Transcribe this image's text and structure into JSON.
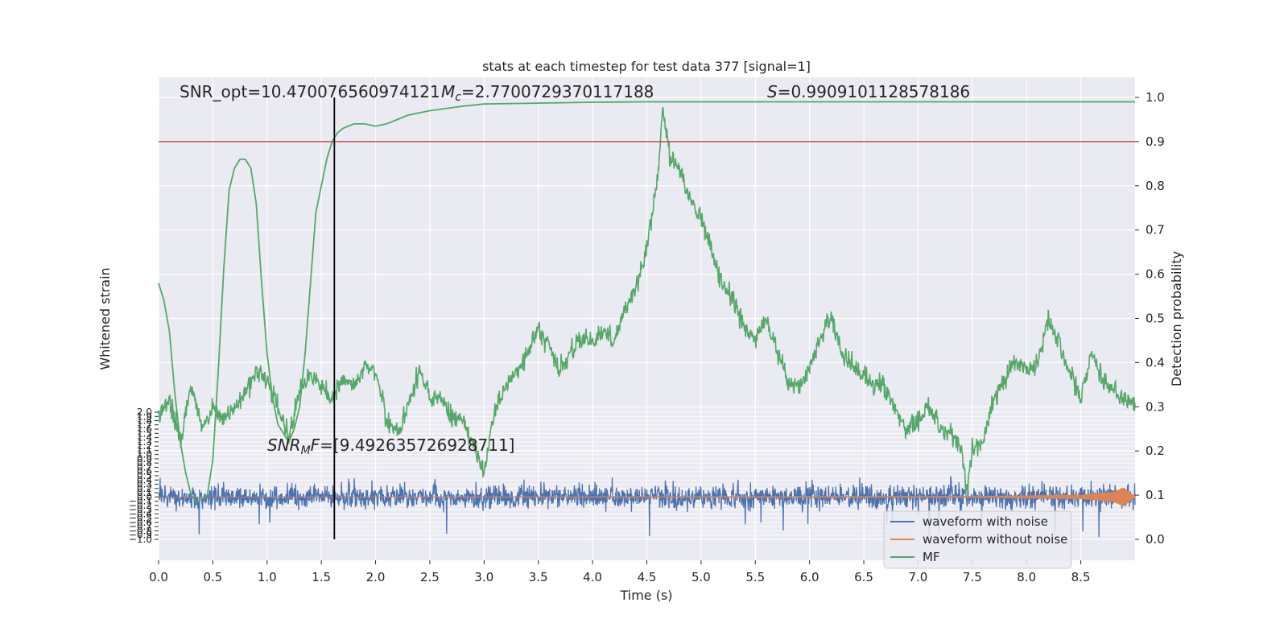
{
  "chart_data": {
    "type": "line",
    "title": "stats at each timestep for test data 377 [signal=1]",
    "xlabel": "Time (s)",
    "ylabel_left": "Whitened strain",
    "ylabel_right": "Detection probability",
    "xlim": [
      0.0,
      9.0
    ],
    "ylim_left": [
      -1.0,
      2.0
    ],
    "ylim_right": [
      0.0,
      1.0
    ],
    "grid": true,
    "legend_position": "lower-right",
    "x_ticks": [
      "0.0",
      "0.5",
      "1.0",
      "1.5",
      "2.0",
      "2.5",
      "3.0",
      "3.5",
      "4.0",
      "4.5",
      "5.0",
      "5.5",
      "6.0",
      "6.5",
      "7.0",
      "7.5",
      "8.0",
      "8.5"
    ],
    "right_ticks": [
      "0.0",
      "0.1",
      "0.2",
      "0.3",
      "0.4",
      "0.5",
      "0.6",
      "0.7",
      "0.8",
      "0.9",
      "1.0"
    ],
    "left_ticks": [
      "−1.0",
      "−0.9",
      "−0.8",
      "−0.7",
      "−0.6",
      "−0.5",
      "−0.4",
      "−0.3",
      "−0.2",
      "−0.1",
      "0.0",
      "0.1",
      "0.2",
      "0.3",
      "0.4",
      "0.5",
      "0.6",
      "0.7",
      "0.8",
      "0.9",
      "1.0",
      "1.1",
      "1.2",
      "1.3",
      "1.4",
      "1.5",
      "1.6",
      "1.7",
      "1.8",
      "1.9",
      "2.0"
    ],
    "threshold": 0.9,
    "threshold_color": "#c44e52",
    "marker_time": 1.62,
    "annotations": {
      "snr_opt": "SNR_opt=10.470076560974121",
      "mc_symbol": "M",
      "mc_sub": "c",
      "mc_value": "=2.7700729370117188",
      "s_symbol": "S",
      "s_value": "=0.9909101128578186",
      "snr_mf_symbol": "SNR",
      "snr_mf_sub": "M",
      "snr_mf_suffix": "F",
      "snr_mf_value": "=[9.492635726928711]"
    },
    "series": [
      {
        "name": "waveform with noise",
        "color": "#4c72b0",
        "axis": "left",
        "amplitude_envelope": [
          [
            0.0,
            0.25
          ],
          [
            9.0,
            0.25
          ]
        ],
        "spike_min": -1.0,
        "spike_max": 0.5
      },
      {
        "name": "waveform without noise",
        "color": "#dd8452",
        "axis": "left",
        "amplitude_envelope": [
          [
            0.0,
            0.005
          ],
          [
            7.5,
            0.02
          ],
          [
            8.5,
            0.05
          ],
          [
            8.8,
            0.12
          ],
          [
            8.9,
            0.22
          ],
          [
            8.95,
            0.1
          ],
          [
            9.0,
            0.03
          ]
        ]
      },
      {
        "name": "MF",
        "color": "#55a868",
        "axis": "right",
        "x": [
          0.0,
          0.05,
          0.1,
          0.15,
          0.2,
          0.25,
          0.3,
          0.35,
          0.4,
          0.45,
          0.5,
          0.55,
          0.6,
          0.65,
          0.7,
          0.75,
          0.8,
          0.85,
          0.9,
          0.95,
          1.0,
          1.05,
          1.1,
          1.15,
          1.2,
          1.25,
          1.3,
          1.35,
          1.4,
          1.45,
          1.5,
          1.55,
          1.6,
          1.65,
          1.7,
          1.8,
          1.9,
          2.0,
          2.1,
          2.2,
          2.3,
          2.5,
          2.8,
          3.0,
          3.5,
          4.0,
          4.5,
          5.0,
          6.0,
          7.0,
          8.0,
          9.0
        ],
        "y": [
          0.58,
          0.54,
          0.47,
          0.33,
          0.22,
          0.15,
          0.1,
          0.085,
          0.09,
          0.1,
          0.18,
          0.38,
          0.61,
          0.79,
          0.84,
          0.86,
          0.86,
          0.84,
          0.76,
          0.58,
          0.42,
          0.32,
          0.26,
          0.24,
          0.22,
          0.25,
          0.3,
          0.42,
          0.58,
          0.74,
          0.8,
          0.86,
          0.9,
          0.92,
          0.93,
          0.94,
          0.94,
          0.935,
          0.94,
          0.95,
          0.96,
          0.97,
          0.98,
          0.985,
          0.987,
          0.989,
          0.99,
          0.99,
          0.99,
          0.99,
          0.99,
          0.99
        ]
      },
      {
        "name": "detection probability",
        "color": "#55a868",
        "axis": "right",
        "legend": false,
        "noise_std": 0.012,
        "x": [
          0.0,
          0.1,
          0.2,
          0.3,
          0.4,
          0.5,
          0.6,
          0.7,
          0.8,
          0.9,
          1.0,
          1.1,
          1.2,
          1.3,
          1.4,
          1.5,
          1.6,
          1.7,
          1.8,
          1.9,
          2.0,
          2.1,
          2.2,
          2.3,
          2.4,
          2.5,
          2.6,
          2.7,
          2.8,
          2.9,
          3.0,
          3.1,
          3.2,
          3.3,
          3.4,
          3.5,
          3.6,
          3.7,
          3.8,
          3.9,
          4.0,
          4.1,
          4.2,
          4.3,
          4.4,
          4.5,
          4.6,
          4.65,
          4.7,
          4.8,
          4.9,
          5.0,
          5.1,
          5.2,
          5.3,
          5.4,
          5.5,
          5.6,
          5.7,
          5.8,
          5.9,
          6.0,
          6.1,
          6.2,
          6.3,
          6.4,
          6.5,
          6.6,
          6.7,
          6.8,
          6.9,
          7.0,
          7.1,
          7.2,
          7.3,
          7.4,
          7.45,
          7.5,
          7.6,
          7.7,
          7.8,
          7.9,
          8.0,
          8.1,
          8.2,
          8.3,
          8.4,
          8.5,
          8.6,
          8.7,
          8.8,
          8.9,
          9.0
        ],
        "y": [
          0.28,
          0.32,
          0.22,
          0.35,
          0.25,
          0.3,
          0.27,
          0.3,
          0.33,
          0.38,
          0.36,
          0.3,
          0.23,
          0.34,
          0.37,
          0.35,
          0.31,
          0.37,
          0.35,
          0.39,
          0.38,
          0.27,
          0.24,
          0.3,
          0.38,
          0.32,
          0.32,
          0.28,
          0.27,
          0.22,
          0.15,
          0.3,
          0.35,
          0.38,
          0.42,
          0.48,
          0.44,
          0.38,
          0.42,
          0.46,
          0.44,
          0.47,
          0.45,
          0.52,
          0.57,
          0.66,
          0.82,
          0.98,
          0.88,
          0.83,
          0.77,
          0.73,
          0.65,
          0.57,
          0.54,
          0.48,
          0.45,
          0.5,
          0.43,
          0.36,
          0.34,
          0.39,
          0.45,
          0.5,
          0.42,
          0.4,
          0.36,
          0.35,
          0.34,
          0.29,
          0.25,
          0.27,
          0.3,
          0.25,
          0.24,
          0.21,
          0.1,
          0.21,
          0.22,
          0.32,
          0.36,
          0.41,
          0.38,
          0.4,
          0.5,
          0.44,
          0.38,
          0.32,
          0.43,
          0.36,
          0.34,
          0.32,
          0.3
        ]
      }
    ]
  }
}
